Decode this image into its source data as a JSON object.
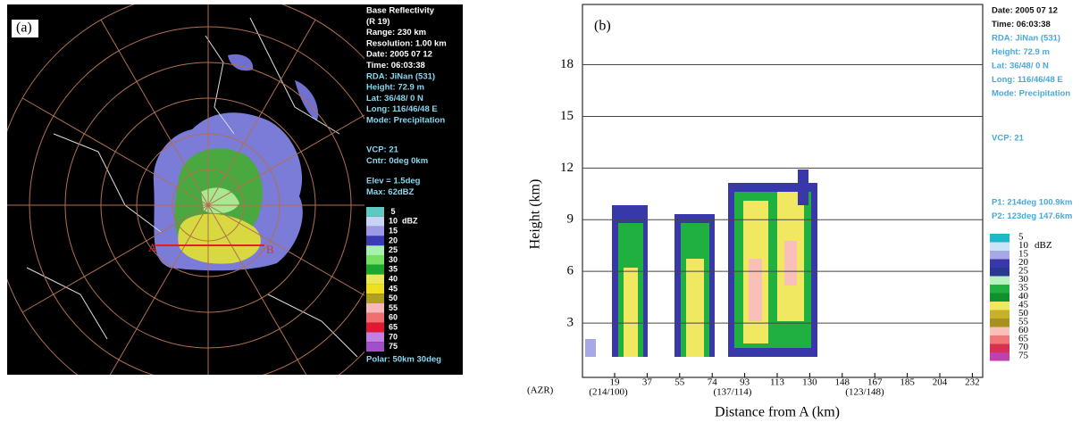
{
  "panel_a": {
    "label": "(a)",
    "info_groups": [
      [
        "Base Reflectivity",
        "(R 19)",
        "Range: 230 km",
        "Resolution: 1.00 km",
        "Date: 2005 07 12",
        "Time: 06:03:38",
        "RDA: JiNan (531)",
        "Height: 72.9 m",
        "Lat:  36/48/ 0 N",
        "Long: 116/46/48 E",
        "Mode: Precipitation"
      ],
      [
        "VCP: 21",
        "Cntr:  0deg  0km"
      ],
      [
        "Elev = 1.5deg",
        "Max: 62dBZ"
      ]
    ],
    "footer": "Polar:  50km 30deg",
    "point_a": "A",
    "point_b": "B",
    "legend_unit": "dBZ",
    "legend": [
      {
        "label": 5,
        "color": "#5fc8c0"
      },
      {
        "label": 10,
        "color": "#c8d4f4"
      },
      {
        "label": 15,
        "color": "#9a9ae6"
      },
      {
        "label": 20,
        "color": "#3a3ab4"
      },
      {
        "label": 25,
        "color": "#a8f0b0"
      },
      {
        "label": 30,
        "color": "#78e060"
      },
      {
        "label": 35,
        "color": "#18a830"
      },
      {
        "label": 40,
        "color": "#e8e858"
      },
      {
        "label": 45,
        "color": "#f0e020"
      },
      {
        "label": 50,
        "color": "#b0a020"
      },
      {
        "label": 55,
        "color": "#f8b8b8"
      },
      {
        "label": 60,
        "color": "#f07070"
      },
      {
        "label": 65,
        "color": "#e01830"
      },
      {
        "label": 70,
        "color": "#c080e0"
      },
      {
        "label": 75,
        "color": "#a050c8"
      }
    ]
  },
  "panel_b": {
    "label": "(b)",
    "y_label": "Height (km)",
    "x_label": "Distance from A (km)",
    "ylim": [
      0,
      21.5
    ],
    "yticks": [
      3,
      6,
      9,
      12,
      15,
      18
    ],
    "x_categories": [
      19,
      37,
      55,
      74,
      93,
      113,
      130,
      148,
      167,
      185,
      204,
      232
    ],
    "azr_title": "(AZR)",
    "azr_labels": [
      "(214/100)",
      "(137/114)",
      "(123/148)"
    ],
    "info_groups": [
      [
        "Date: 2005 07 12",
        "Time: 06:03:38",
        "RDA: JiNan (531)",
        "Height: 72.9 m",
        "Lat:  36/48/ 0 N",
        "Long: 116/46/48 E",
        "Mode: Precipitation"
      ],
      [
        "VCP: 21"
      ],
      [
        "P1: 214deg 100.9km",
        "P2: 123deg  147.6km"
      ]
    ],
    "legend_unit": "dBZ",
    "legend": [
      {
        "label": 5,
        "color": "#20b8c8"
      },
      {
        "label": 10,
        "color": "#c8e4f8"
      },
      {
        "label": 15,
        "color": "#a8a8e8"
      },
      {
        "label": 20,
        "color": "#3838a8"
      },
      {
        "label": 25,
        "color": "#283890"
      },
      {
        "label": 30,
        "color": "#b8f0c0"
      },
      {
        "label": 35,
        "color": "#20b040"
      },
      {
        "label": 40,
        "color": "#10902c"
      },
      {
        "label": 45,
        "color": "#f0e860"
      },
      {
        "label": 50,
        "color": "#c8b028"
      },
      {
        "label": 55,
        "color": "#a89020"
      },
      {
        "label": 60,
        "color": "#f8c0b8"
      },
      {
        "label": 65,
        "color": "#f07878"
      },
      {
        "label": 70,
        "color": "#d83050"
      },
      {
        "label": 75,
        "color": "#c040b0"
      }
    ]
  }
}
